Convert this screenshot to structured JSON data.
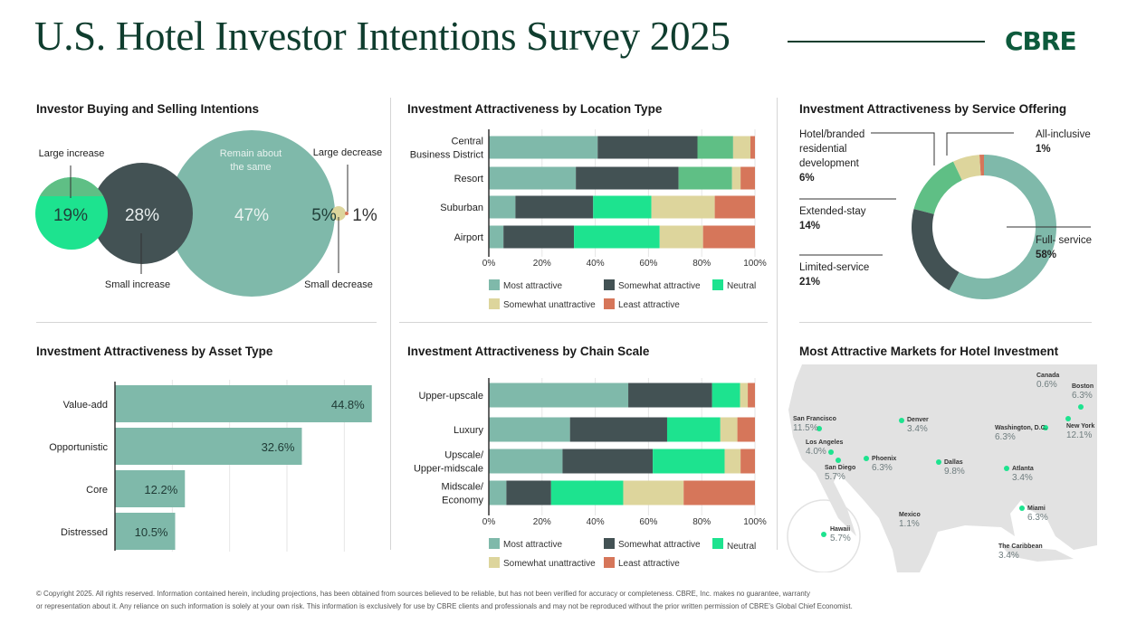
{
  "header": {
    "title": "U.S. Hotel Investor Intentions Survey 2025",
    "logo": "CBRE",
    "brand_color": "#0d5a3c"
  },
  "colors": {
    "most": "#7fb9aa",
    "somewhat": "#435254",
    "neutral": "#1de38f",
    "neutral_alt": "#5fbf85",
    "unattractive": "#ddd59c",
    "least": "#d6765a"
  },
  "chart_data": [
    {
      "type": "bubble",
      "title": "Investor Buying and Selling Intentions",
      "categories": [
        "Large increase",
        "Small increase",
        "Remain about the same",
        "Small decrease",
        "Large decrease"
      ],
      "values": [
        19,
        28,
        47,
        5,
        1
      ],
      "value_labels": [
        "19%",
        "28%",
        "47%",
        "5%",
        "1%"
      ],
      "label_lines": [
        "Large increase",
        "Small increase",
        "Remain about\nthe same",
        "Small decrease",
        "Large decrease"
      ]
    },
    {
      "type": "bar",
      "stacked": true,
      "orientation": "horizontal",
      "title": "Investment Attractiveness by Location Type",
      "categories": [
        "Central Business District",
        "Resort",
        "Suburban",
        "Airport"
      ],
      "category_lines": [
        [
          "Central",
          "Business District"
        ],
        [
          "Resort"
        ],
        [
          "Suburban"
        ],
        [
          "Airport"
        ]
      ],
      "series": [
        {
          "name": "Most attractive",
          "values": [
            40.9,
            32.7,
            10.0,
            5.5
          ]
        },
        {
          "name": "Somewhat attractive",
          "values": [
            37.5,
            38.6,
            29.2,
            26.5
          ]
        },
        {
          "name": "Neutral",
          "values": [
            13.4,
            20.1,
            21.9,
            32.2
          ]
        },
        {
          "name": "Somewhat unattractive",
          "values": [
            6.5,
            3.2,
            23.8,
            16.3
          ]
        },
        {
          "name": "Least attractive",
          "values": [
            1.7,
            5.4,
            15.1,
            19.5
          ]
        }
      ],
      "xlim": [
        0,
        100
      ],
      "ticks": [
        "0%",
        "20%",
        "40%",
        "60%",
        "80%",
        "100%"
      ],
      "legend": "bottom",
      "grid": true
    },
    {
      "type": "pie",
      "donut": true,
      "title": "Investment Attractiveness by Service Offering",
      "slices": [
        {
          "label": "Full- service",
          "value": 58,
          "display": "58%"
        },
        {
          "label": "Limited-service",
          "value": 21,
          "display": "21%"
        },
        {
          "label": "Extended-stay",
          "value": 14,
          "display": "14%"
        },
        {
          "label": "Hotel/branded residential development",
          "value": 6,
          "display": "6%"
        },
        {
          "label": "All-inclusive",
          "value": 1,
          "display": "1%"
        }
      ]
    },
    {
      "type": "bar",
      "orientation": "horizontal",
      "title": "Investment Attractiveness by Asset Type",
      "categories": [
        "Value-add",
        "Opportunistic",
        "Core",
        "Distressed"
      ],
      "values": [
        44.8,
        32.6,
        12.2,
        10.5
      ],
      "value_labels": [
        "44.8%",
        "32.6%",
        "12.2%",
        "10.5%"
      ],
      "xlim": [
        0,
        45
      ],
      "grid": true
    },
    {
      "type": "bar",
      "stacked": true,
      "orientation": "horizontal",
      "title": "Investment Attractiveness by Chain Scale",
      "categories": [
        "Upper-upscale",
        "Luxury",
        "Upscale/ Upper-midscale",
        "Midscale/ Economy"
      ],
      "category_lines": [
        [
          "Upper-upscale"
        ],
        [
          "Luxury"
        ],
        [
          "Upscale/",
          "Upper-midscale"
        ],
        [
          "Midscale/",
          "Economy"
        ]
      ],
      "series": [
        {
          "name": "Most attractive",
          "values": [
            52.4,
            30.5,
            27.7,
            6.6
          ]
        },
        {
          "name": "Somewhat attractive",
          "values": [
            31.5,
            36.5,
            33.9,
            16.8
          ]
        },
        {
          "name": "Neutral",
          "values": [
            10.5,
            20.0,
            27.0,
            27.1
          ]
        },
        {
          "name": "Somewhat unattractive",
          "values": [
            2.9,
            6.4,
            6.0,
            22.7
          ]
        },
        {
          "name": "Least attractive",
          "values": [
            2.7,
            6.6,
            5.4,
            26.8
          ]
        }
      ],
      "xlim": [
        0,
        100
      ],
      "ticks": [
        "0%",
        "20%",
        "40%",
        "60%",
        "80%",
        "100%"
      ],
      "legend": "bottom",
      "grid": true
    },
    {
      "type": "map",
      "title": "Most Attractive Markets for Hotel Investment",
      "markets": [
        {
          "name": "Canada",
          "value": "0.6%"
        },
        {
          "name": "Boston",
          "value": "6.3%"
        },
        {
          "name": "New York",
          "value": "12.1%"
        },
        {
          "name": "Washington, D.C.",
          "value": "6.3%"
        },
        {
          "name": "San Francisco",
          "value": "11.5%"
        },
        {
          "name": "Denver",
          "value": "3.4%"
        },
        {
          "name": "Los Angeles",
          "value": "4.0%"
        },
        {
          "name": "San Diego",
          "value": "5.7%"
        },
        {
          "name": "Phoenix",
          "value": "6.3%"
        },
        {
          "name": "Dallas",
          "value": "9.8%"
        },
        {
          "name": "Atlanta",
          "value": "3.4%"
        },
        {
          "name": "Miami",
          "value": "6.3%"
        },
        {
          "name": "Mexico",
          "value": "1.1%"
        },
        {
          "name": "Hawaii",
          "value": "5.7%"
        },
        {
          "name": "The Caribbean",
          "value": "3.4%"
        }
      ]
    }
  ],
  "footer": {
    "line1": "© Copyright 2025. All rights reserved. Information contained herein, including projections, has been obtained from sources believed to be reliable, but has not been verified for accuracy or completeness. CBRE, Inc. makes no guarantee, warranty",
    "line2": "or representation about it. Any reliance on such information is solely at your own risk. This information is exclusively for use by CBRE clients and professionals and may not be reproduced without the prior written permission of CBRE's Global Chief Economist."
  }
}
